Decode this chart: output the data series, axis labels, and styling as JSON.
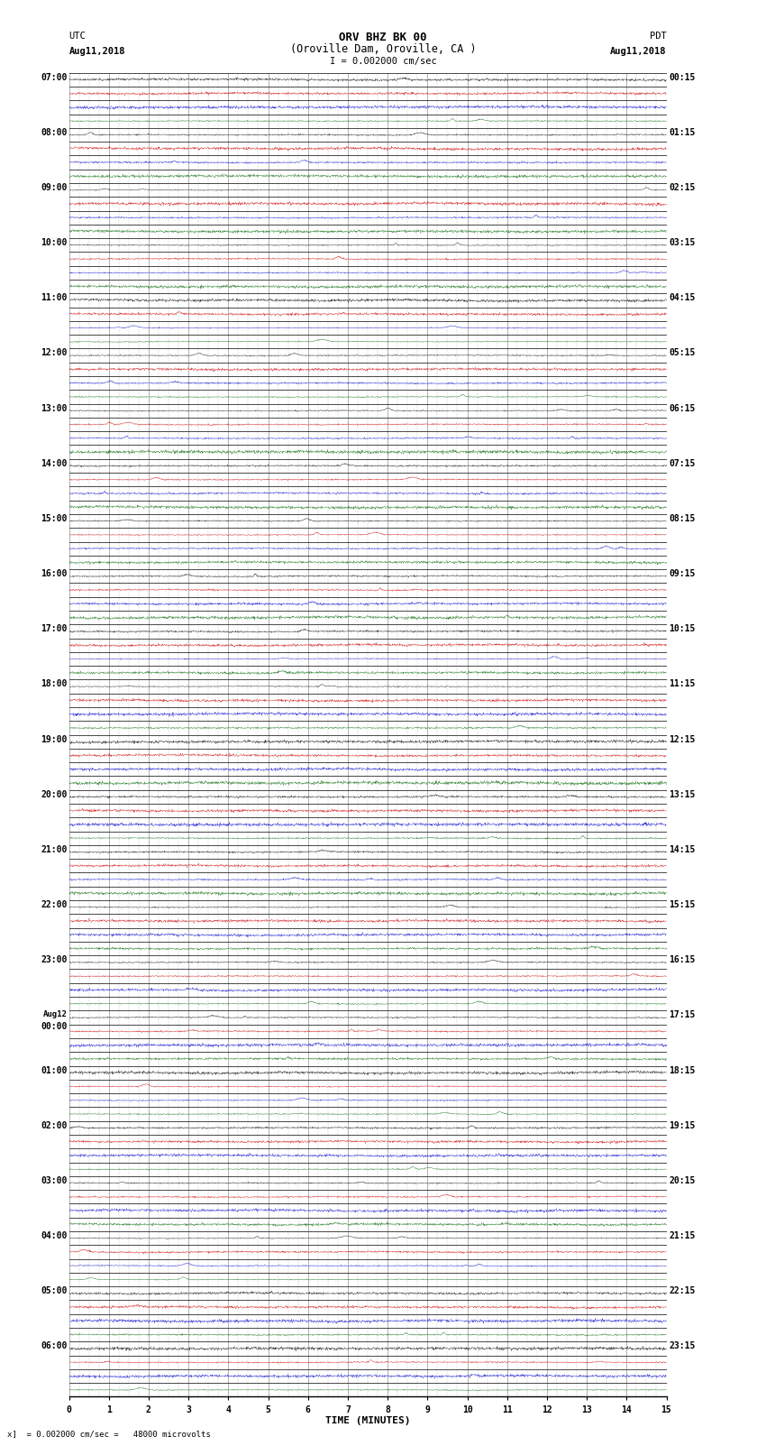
{
  "title_line1": "ORV BHZ BK 00",
  "title_line2": "(Oroville Dam, Oroville, CA )",
  "scale_label": "I = 0.002000 cm/sec",
  "left_header_line1": "UTC",
  "left_header_line2": "Aug11,2018",
  "right_header_line1": "PDT",
  "right_header_line2": "Aug11,2018",
  "bottom_label": "TIME (MINUTES)",
  "bottom_note": "= 0.002000 cm/sec =   48000 microvolts",
  "bg_color": "#ffffff",
  "trace_color_black": "#000000",
  "trace_color_red": "#cc0000",
  "trace_color_blue": "#0000cc",
  "trace_color_green": "#006600",
  "grid_major_color": "#777777",
  "grid_minor_color": "#bbbbbb",
  "fig_width": 8.5,
  "fig_height": 16.13,
  "num_rows": 96,
  "minutes_per_row": 15,
  "utc_labels": [
    {
      "label": "07:00",
      "row": 0
    },
    {
      "label": "08:00",
      "row": 4
    },
    {
      "label": "09:00",
      "row": 8
    },
    {
      "label": "10:00",
      "row": 12
    },
    {
      "label": "11:00",
      "row": 16
    },
    {
      "label": "12:00",
      "row": 20
    },
    {
      "label": "13:00",
      "row": 24
    },
    {
      "label": "14:00",
      "row": 28
    },
    {
      "label": "15:00",
      "row": 32
    },
    {
      "label": "16:00",
      "row": 36
    },
    {
      "label": "17:00",
      "row": 40
    },
    {
      "label": "18:00",
      "row": 44
    },
    {
      "label": "19:00",
      "row": 48
    },
    {
      "label": "20:00",
      "row": 52
    },
    {
      "label": "21:00",
      "row": 56
    },
    {
      "label": "22:00",
      "row": 60
    },
    {
      "label": "23:00",
      "row": 64
    },
    {
      "label": "Aug12\n00:00",
      "row": 68
    },
    {
      "label": "01:00",
      "row": 72
    },
    {
      "label": "02:00",
      "row": 76
    },
    {
      "label": "03:00",
      "row": 80
    },
    {
      "label": "04:00",
      "row": 84
    },
    {
      "label": "05:00",
      "row": 88
    },
    {
      "label": "06:00",
      "row": 92
    }
  ],
  "pdt_labels": [
    {
      "label": "00:15",
      "row": 0
    },
    {
      "label": "01:15",
      "row": 4
    },
    {
      "label": "02:15",
      "row": 8
    },
    {
      "label": "03:15",
      "row": 12
    },
    {
      "label": "04:15",
      "row": 16
    },
    {
      "label": "05:15",
      "row": 20
    },
    {
      "label": "06:15",
      "row": 24
    },
    {
      "label": "07:15",
      "row": 28
    },
    {
      "label": "08:15",
      "row": 32
    },
    {
      "label": "09:15",
      "row": 36
    },
    {
      "label": "10:15",
      "row": 40
    },
    {
      "label": "11:15",
      "row": 44
    },
    {
      "label": "12:15",
      "row": 48
    },
    {
      "label": "13:15",
      "row": 52
    },
    {
      "label": "14:15",
      "row": 56
    },
    {
      "label": "15:15",
      "row": 60
    },
    {
      "label": "16:15",
      "row": 64
    },
    {
      "label": "17:15",
      "row": 68
    },
    {
      "label": "18:15",
      "row": 72
    },
    {
      "label": "19:15",
      "row": 76
    },
    {
      "label": "20:15",
      "row": 80
    },
    {
      "label": "21:15",
      "row": 84
    },
    {
      "label": "22:15",
      "row": 88
    },
    {
      "label": "23:15",
      "row": 92
    }
  ],
  "x_ticks": [
    0,
    1,
    2,
    3,
    4,
    5,
    6,
    7,
    8,
    9,
    10,
    11,
    12,
    13,
    14,
    15
  ],
  "row_colors": [
    "#000000",
    "#cc0000",
    "#0000cc",
    "#006600"
  ]
}
